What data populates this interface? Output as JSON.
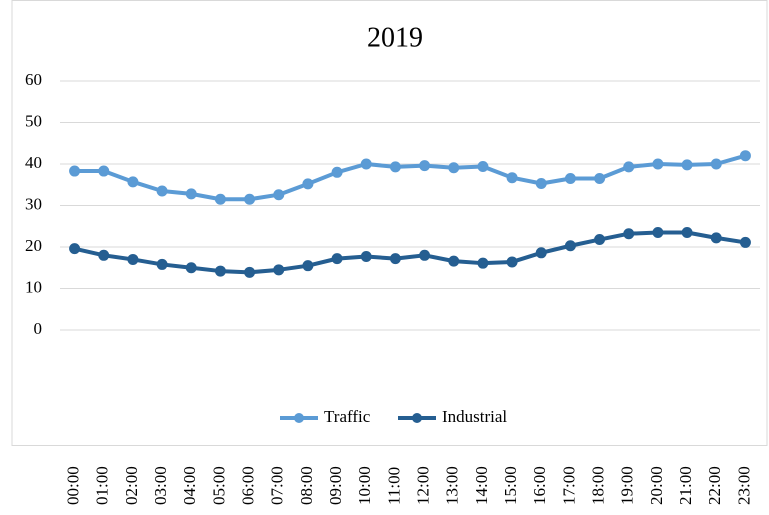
{
  "chart_data": {
    "type": "line",
    "title": "2019",
    "categories": [
      "00:00",
      "01:00",
      "02:00",
      "03:00",
      "04:00",
      "05:00",
      "06:00",
      "07:00",
      "08:00",
      "09:00",
      "10:00",
      "11:00",
      "12:00",
      "13:00",
      "14:00",
      "15:00",
      "16:00",
      "17:00",
      "18:00",
      "19:00",
      "20:00",
      "21:00",
      "22:00",
      "23:00"
    ],
    "series": [
      {
        "name": "Traffic",
        "color": "#5b9bd5",
        "values": [
          38.3,
          38.3,
          35.7,
          33.5,
          32.8,
          31.5,
          31.5,
          32.6,
          35.2,
          38,
          40,
          39.3,
          39.6,
          39.1,
          39.4,
          36.7,
          35.3,
          36.5,
          36.5,
          39.3,
          40,
          39.8,
          40,
          42
        ]
      },
      {
        "name": "Industrial",
        "color": "#255e91",
        "values": [
          19.6,
          18,
          17,
          15.8,
          15,
          14.2,
          13.9,
          14.5,
          15.5,
          17.2,
          17.7,
          17.2,
          18,
          16.6,
          16.1,
          16.4,
          18.6,
          20.3,
          21.8,
          23.2,
          23.5,
          23.5,
          22.2,
          21.1
        ]
      }
    ],
    "ylim": [
      0,
      60
    ],
    "yticks": [
      0,
      10,
      20,
      30,
      40,
      50,
      60
    ],
    "grid": true,
    "legend": "bottom"
  }
}
